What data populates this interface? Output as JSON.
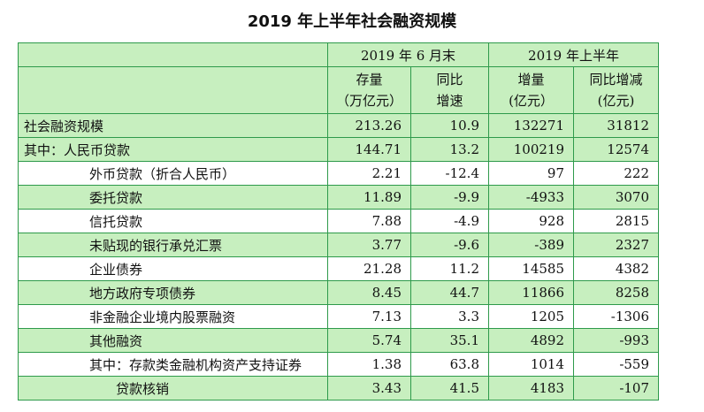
{
  "title": "2019 年上半年社会融资规模",
  "header": {
    "group1": "2019 年 6 月末",
    "group2": "2019 年上半年",
    "col1_line1": "存量",
    "col1_line2": "（万亿元）",
    "col2_line1": "同比",
    "col2_line2": "增速",
    "col3_line1": "增量",
    "col3_line2": "(亿元）",
    "col4_line1": "同比增减",
    "col4_line2": "(亿元)"
  },
  "rows": [
    {
      "name": "社会融资规模",
      "stock": "213.26",
      "growth": "10.9",
      "increment": "132271",
      "change": "31812"
    },
    {
      "name": "其中：人民币贷款",
      "stock": "144.71",
      "growth": "13.2",
      "increment": "100219",
      "change": "12574"
    },
    {
      "name": "外币贷款（折合人民币）",
      "stock": "2.21",
      "growth": "-12.4",
      "increment": "97",
      "change": "222"
    },
    {
      "name": "委托贷款",
      "stock": "11.89",
      "growth": "-9.9",
      "increment": "-4933",
      "change": "3070"
    },
    {
      "name": "信托贷款",
      "stock": "7.88",
      "growth": "-4.9",
      "increment": "928",
      "change": "2815"
    },
    {
      "name": "未贴现的银行承兑汇票",
      "stock": "3.77",
      "growth": "-9.6",
      "increment": "-389",
      "change": "2327"
    },
    {
      "name": "企业债券",
      "stock": "21.28",
      "growth": "11.2",
      "increment": "14585",
      "change": "4382"
    },
    {
      "name": "地方政府专项债券",
      "stock": "8.45",
      "growth": "44.7",
      "increment": "11866",
      "change": "8258"
    },
    {
      "name": "非金融企业境内股票融资",
      "stock": "7.13",
      "growth": "3.3",
      "increment": "1205",
      "change": "-1306"
    },
    {
      "name": "其他融资",
      "stock": "5.74",
      "growth": "35.1",
      "increment": "4892",
      "change": "-993"
    },
    {
      "name": "其中：存款类金融机构资产支持证券",
      "stock": "1.38",
      "growth": "63.8",
      "increment": "1014",
      "change": "-559"
    },
    {
      "name": "贷款核销",
      "stock": "3.43",
      "growth": "41.5",
      "increment": "4183",
      "change": "-107"
    }
  ],
  "colors": {
    "border": "#2e9a4b",
    "band": "#c7efbf"
  }
}
